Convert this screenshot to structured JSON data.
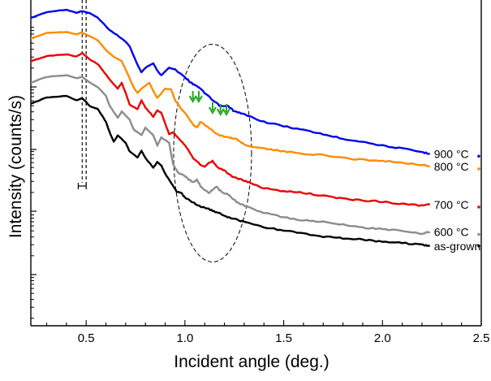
{
  "chart_data": {
    "type": "line",
    "title": "",
    "xlabel": "Incident angle (deg.)",
    "ylabel": "Intensity (counts/s)",
    "xlim": [
      0.22,
      2.5
    ],
    "ylim": [
      0,
      100
    ],
    "x_ticks": [
      {
        "value": 0.5,
        "label": "0.5"
      },
      {
        "value": 1.0,
        "label": "1.0"
      },
      {
        "value": 1.5,
        "label": "1.5"
      },
      {
        "value": 2.0,
        "label": "2.0"
      },
      {
        "value": 2.5,
        "label": "2.5"
      }
    ],
    "y_ticks": "log-scale minor ticks, unlabeled",
    "series": [
      {
        "name": "900 °C",
        "color": "#0000ee",
        "x": [
          0.22,
          0.3,
          0.4,
          0.45,
          0.48,
          0.52,
          0.56,
          0.62,
          0.66,
          0.7,
          0.72,
          0.76,
          0.78,
          0.8,
          0.84,
          0.86,
          0.88,
          0.92,
          0.95,
          1.0,
          1.03,
          1.06,
          1.1,
          1.14,
          1.18,
          1.22,
          1.25,
          1.3,
          1.4,
          1.5,
          1.6,
          1.7,
          1.8,
          1.9,
          2.0,
          2.1,
          2.2,
          2.24
        ],
        "y": [
          94.5,
          96.3,
          97.0,
          96.1,
          96.6,
          95.9,
          94.5,
          90.7,
          89.1,
          87.2,
          85.8,
          80.1,
          77.8,
          79.2,
          80.6,
          78.3,
          76.9,
          79.2,
          78.7,
          76.4,
          74.6,
          73.7,
          71.5,
          69.2,
          67.4,
          67.4,
          65.8,
          64.9,
          62.6,
          61.3,
          60.1,
          58.8,
          57.4,
          56.5,
          55.3,
          54.4,
          53.3,
          52.8
        ]
      },
      {
        "name": "800 °C",
        "color": "#ff8c00",
        "x": [
          0.22,
          0.3,
          0.4,
          0.45,
          0.48,
          0.52,
          0.56,
          0.6,
          0.64,
          0.68,
          0.7,
          0.74,
          0.76,
          0.78,
          0.82,
          0.84,
          0.86,
          0.9,
          0.93,
          0.95,
          0.98,
          1.0,
          1.04,
          1.06,
          1.08,
          1.12,
          1.16,
          1.18,
          1.22,
          1.26,
          1.3,
          1.4,
          1.5,
          1.6,
          1.7,
          1.8,
          1.9,
          2.0,
          2.1,
          2.2,
          2.24
        ],
        "y": [
          88.1,
          89.9,
          90.2,
          89.5,
          90.0,
          88.8,
          87.6,
          84.6,
          82.6,
          81.2,
          78.7,
          73.2,
          71.5,
          72.8,
          74.6,
          72.1,
          69.9,
          72.8,
          72.6,
          69.2,
          66.7,
          65.4,
          61.7,
          60.8,
          62.6,
          60.8,
          59.0,
          58.4,
          57.8,
          57.4,
          55.6,
          54.4,
          53.5,
          52.8,
          52.4,
          51.5,
          51.0,
          50.6,
          50.1,
          49.4,
          48.9
        ]
      },
      {
        "name": "700 °C",
        "color": "#ee0000",
        "x": [
          0.22,
          0.3,
          0.4,
          0.45,
          0.48,
          0.52,
          0.56,
          0.6,
          0.62,
          0.66,
          0.68,
          0.7,
          0.72,
          0.76,
          0.78,
          0.8,
          0.84,
          0.86,
          0.88,
          0.92,
          0.94,
          0.96,
          1.0,
          1.04,
          1.08,
          1.1,
          1.14,
          1.16,
          1.2,
          1.24,
          1.3,
          1.35,
          1.4,
          1.5,
          1.6,
          1.7,
          1.8,
          1.9,
          2.0,
          2.1,
          2.2,
          2.24
        ],
        "y": [
          81.2,
          82.8,
          83.3,
          82.6,
          83.7,
          81.7,
          80.3,
          77.1,
          75.5,
          72.8,
          74.6,
          71.5,
          67.9,
          66.5,
          69.2,
          67.0,
          64.2,
          66.1,
          65.4,
          58.8,
          59.4,
          58.1,
          55.6,
          51.7,
          49.4,
          49.0,
          50.6,
          48.9,
          47.6,
          45.8,
          44.5,
          43.4,
          42.2,
          41.3,
          40.8,
          39.9,
          39.0,
          38.5,
          38.1,
          37.4,
          36.9,
          37.2
        ]
      },
      {
        "name": "600 °C",
        "color": "#8c8c8c",
        "x": [
          0.22,
          0.3,
          0.4,
          0.45,
          0.48,
          0.52,
          0.56,
          0.6,
          0.62,
          0.66,
          0.68,
          0.72,
          0.74,
          0.78,
          0.8,
          0.84,
          0.86,
          0.88,
          0.92,
          0.94,
          0.96,
          1.0,
          1.04,
          1.06,
          1.08,
          1.12,
          1.16,
          1.18,
          1.22,
          1.26,
          1.3,
          1.4,
          1.5,
          1.6,
          1.7,
          1.8,
          1.9,
          2.0,
          2.1,
          2.2,
          2.24
        ],
        "y": [
          74.6,
          76.4,
          76.9,
          76.0,
          76.4,
          74.6,
          73.2,
          70.6,
          67.4,
          63.8,
          65.8,
          63.3,
          60.3,
          58.5,
          60.8,
          58.5,
          55.3,
          57.8,
          56.2,
          49.6,
          47.4,
          45.8,
          44.0,
          44.9,
          42.7,
          40.8,
          42.7,
          41.3,
          40.3,
          38.1,
          36.9,
          34.7,
          33.3,
          32.4,
          31.9,
          31.0,
          30.1,
          29.7,
          29.2,
          28.3,
          28.8
        ]
      },
      {
        "name": "as-grown",
        "color": "#000000",
        "x": [
          0.22,
          0.3,
          0.4,
          0.45,
          0.48,
          0.52,
          0.56,
          0.6,
          0.62,
          0.64,
          0.66,
          0.7,
          0.72,
          0.76,
          0.78,
          0.8,
          0.84,
          0.86,
          0.88,
          0.9,
          0.94,
          0.96,
          0.98,
          1.0,
          1.04,
          1.08,
          1.12,
          1.16,
          1.2,
          1.25,
          1.3,
          1.4,
          1.5,
          1.6,
          1.7,
          1.8,
          1.9,
          2.0,
          2.1,
          2.2,
          2.24
        ],
        "y": [
          68.1,
          70.1,
          70.6,
          69.2,
          69.9,
          67.4,
          66.5,
          62.6,
          59.2,
          56.5,
          58.4,
          56.2,
          53.5,
          51.7,
          53.7,
          51.5,
          48.5,
          50.3,
          49.2,
          46.7,
          42.9,
          41.1,
          40.8,
          39.4,
          37.8,
          36.7,
          35.8,
          34.9,
          33.7,
          32.8,
          31.9,
          30.3,
          29.2,
          28.3,
          27.4,
          26.9,
          26.5,
          25.8,
          25.4,
          24.9,
          24.5
        ]
      }
    ],
    "annotations": {
      "dashed_vertical_line": {
        "x": 0.5,
        "linestyle": "dashed"
      },
      "error_bar": {
        "x": 0.48,
        "xerr": 0.02
      },
      "dashed_ellipse": {
        "center_x": 1.14,
        "center_y": 53,
        "description": "highlight region"
      },
      "green_arrows": [
        1.04,
        1.07,
        1.14,
        1.18,
        1.21
      ]
    }
  }
}
